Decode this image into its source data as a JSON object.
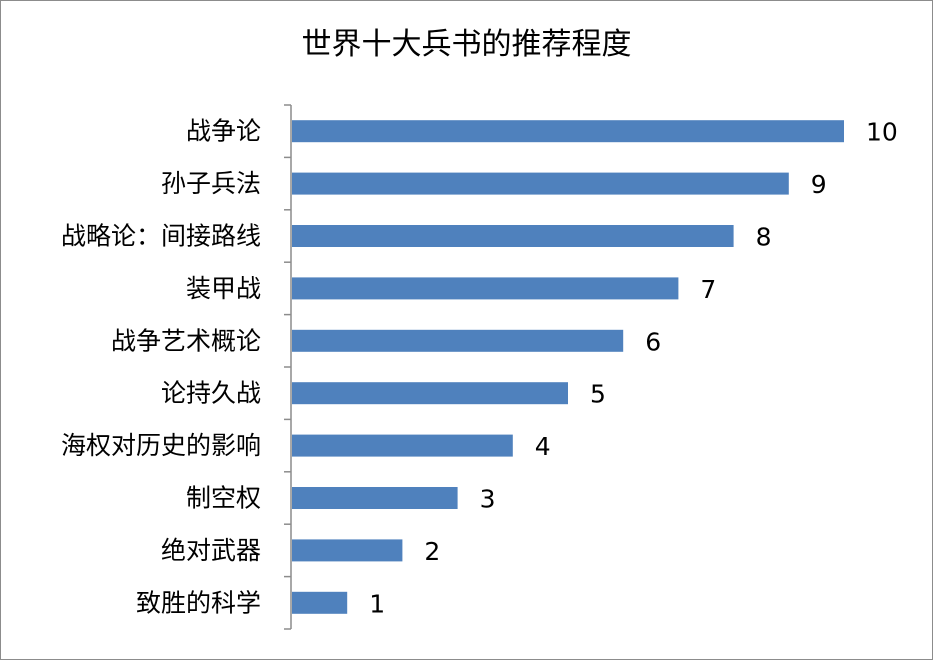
{
  "chart_data": {
    "type": "bar",
    "orientation": "horizontal",
    "title": "世界十大兵书的推荐程度",
    "categories": [
      "战争论",
      "孙子兵法",
      "战略论：间接路线",
      "装甲战",
      "战争艺术概论",
      "论持久战",
      "海权对历史的影响",
      "制空权",
      "绝对武器",
      "致胜的科学"
    ],
    "values": [
      10,
      9,
      8,
      7,
      6,
      5,
      4,
      3,
      2,
      1
    ],
    "data_labels": [
      "10",
      "9",
      "8",
      "7",
      "6",
      "5",
      "4",
      "3",
      "2",
      "1"
    ],
    "xlim": [
      0,
      10
    ],
    "grid": false,
    "legend": "none",
    "bar_color": "#4f81bd",
    "axis_color": "#8c8c8c"
  }
}
